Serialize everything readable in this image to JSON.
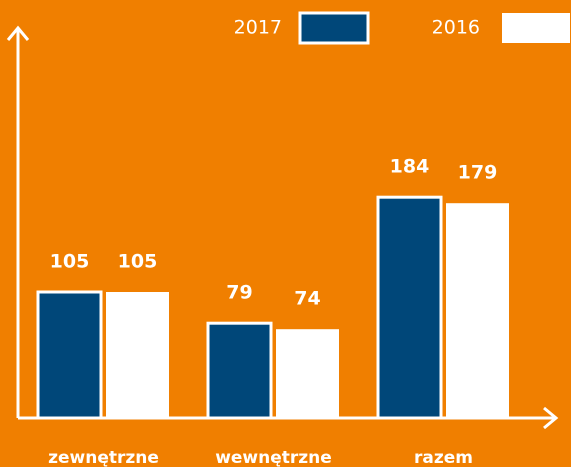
{
  "chart_data": {
    "type": "bar",
    "categories": [
      "zewnętrzne",
      "wewnętrzne",
      "razem"
    ],
    "series": [
      {
        "name": "2017",
        "color": "#004779",
        "values": [
          105,
          79,
          184
        ]
      },
      {
        "name": "2016",
        "color": "#ffffff",
        "values": [
          105,
          74,
          179
        ]
      }
    ],
    "background": "#f07f00"
  }
}
